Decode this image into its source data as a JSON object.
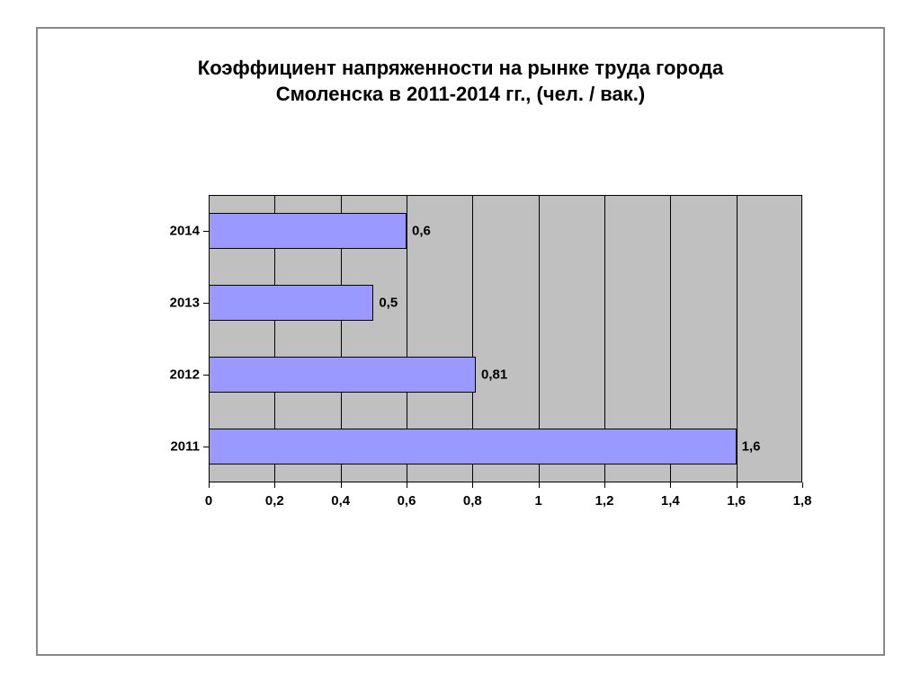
{
  "title_line1": "Коэффициент напряженности на рынке труда города",
  "title_line2": "Смоленска в 2011-2014 гг., (чел. / вак.)",
  "chart": {
    "type": "bar-horizontal",
    "categories": [
      "2014",
      "2013",
      "2012",
      "2011"
    ],
    "values": [
      0.6,
      0.5,
      0.81,
      1.6
    ],
    "value_labels": [
      "0,6",
      "0,5",
      "0,81",
      "1,6"
    ],
    "bar_color": "#9999ff",
    "bar_border_color": "#000000",
    "plot_bg_color": "#c0c0c0",
    "grid_color": "#000000",
    "xlim": [
      0,
      1.8
    ],
    "xtick_step": 0.2,
    "xtick_labels": [
      "0",
      "0,2",
      "0,4",
      "0,6",
      "0,8",
      "1",
      "1,2",
      "1,4",
      "1,6",
      "1,8"
    ],
    "title_fontsize": 22,
    "tick_fontsize": 15,
    "label_fontsize": 15,
    "bar_height_ratio": 0.5
  }
}
